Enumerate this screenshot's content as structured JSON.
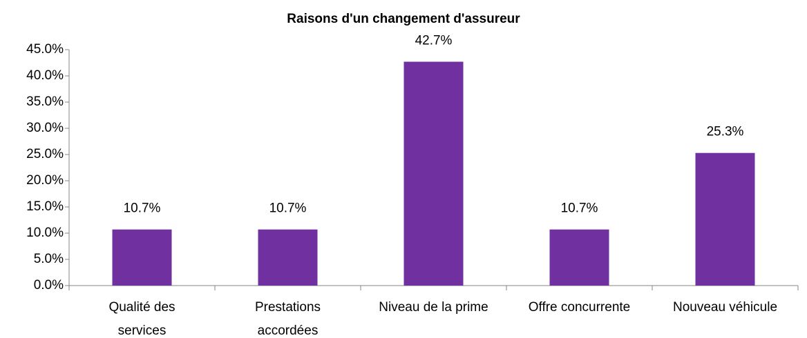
{
  "chart_data": {
    "type": "bar",
    "title": "Raisons d'un changement d'assureur",
    "categories": [
      [
        "Qualité des",
        "services"
      ],
      [
        "Prestations",
        "accordées"
      ],
      "Niveau de la prime",
      "Offre concurrente",
      "Nouveau véhicule"
    ],
    "values": [
      10.7,
      10.7,
      42.7,
      10.7,
      25.3
    ],
    "value_labels": [
      "10.7%",
      "10.7%",
      "42.7%",
      "10.7%",
      "25.3%"
    ],
    "color": "#7030a0",
    "ylim": [
      0,
      45
    ],
    "yticks": [
      {
        "value": 0,
        "label": "0.0%"
      },
      {
        "value": 5,
        "label": "5.0%"
      },
      {
        "value": 10,
        "label": "10.0%"
      },
      {
        "value": 15,
        "label": "15.0%"
      },
      {
        "value": 20,
        "label": "20.0%"
      },
      {
        "value": 25,
        "label": "25.0%"
      },
      {
        "value": 30,
        "label": "30.0%"
      },
      {
        "value": 35,
        "label": "35.0%"
      },
      {
        "value": 40,
        "label": "40.0%"
      },
      {
        "value": 45,
        "label": "45.0%"
      }
    ],
    "grid": false
  }
}
